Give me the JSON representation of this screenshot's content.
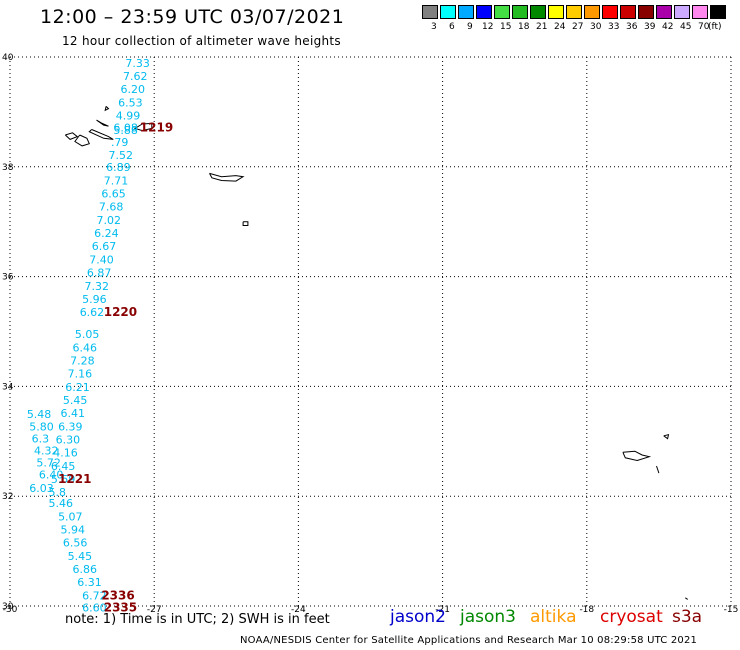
{
  "header": {
    "title": "12:00 – 23:59 UTC 03/07/2021",
    "subtitle": "12 hour collection of altimeter wave heights"
  },
  "legend": {
    "colors": [
      "#808080",
      "#00ffff",
      "#00aaff",
      "#0000ff",
      "#44dd44",
      "#22bb22",
      "#008800",
      "#ffff00",
      "#ffcc00",
      "#ff9900",
      "#ff0000",
      "#cc0000",
      "#880000",
      "#aa00aa",
      "#ccaaff",
      "#ff88ee",
      "#000000"
    ],
    "labels": [
      "3",
      "6",
      "9",
      "12",
      "15",
      "18",
      "21",
      "24",
      "27",
      "30",
      "33",
      "36",
      "39",
      "42",
      "45",
      "70",
      "(ft)"
    ]
  },
  "chart_data": {
    "type": "scatter",
    "xlim": [
      -30,
      -15
    ],
    "ylim": [
      30,
      40
    ],
    "x_ticks": [
      "-30",
      "-27",
      "-24",
      "-21",
      "-18",
      "-15"
    ],
    "y_ticks": [
      "40",
      "38",
      "36",
      "34",
      "32",
      "30"
    ],
    "swh_color": "#00bbee",
    "time_color": "#880000",
    "swh_track_1": [
      {
        "lon": -27.6,
        "lat": 39.82,
        "v": "7.33"
      },
      {
        "lon": -27.65,
        "lat": 39.58,
        "v": "7.62"
      },
      {
        "lon": -27.7,
        "lat": 39.34,
        "v": "6.20"
      },
      {
        "lon": -27.75,
        "lat": 39.1,
        "v": "6.53"
      },
      {
        "lon": -27.8,
        "lat": 38.86,
        "v": "4.99"
      },
      {
        "lon": -27.85,
        "lat": 38.64,
        "v": "6.08"
      },
      {
        "lon": -27.85,
        "lat": 38.6,
        "v": "5.88"
      },
      {
        "lon": -27.9,
        "lat": 38.38,
        "v": ".79"
      },
      {
        "lon": -27.95,
        "lat": 38.14,
        "v": "7.52"
      },
      {
        "lon": -28.0,
        "lat": 37.92,
        "v": "6.89"
      },
      {
        "lon": -28.05,
        "lat": 37.68,
        "v": "7.71"
      },
      {
        "lon": -28.1,
        "lat": 37.44,
        "v": "6.65"
      },
      {
        "lon": -28.15,
        "lat": 37.2,
        "v": "7.68"
      },
      {
        "lon": -28.2,
        "lat": 36.96,
        "v": "7.02"
      },
      {
        "lon": -28.25,
        "lat": 36.72,
        "v": "6.24"
      },
      {
        "lon": -28.3,
        "lat": 36.48,
        "v": "6.67"
      },
      {
        "lon": -28.35,
        "lat": 36.24,
        "v": "7.40"
      },
      {
        "lon": -28.4,
        "lat": 36.0,
        "v": "6.87"
      },
      {
        "lon": -28.45,
        "lat": 35.76,
        "v": "7.32"
      },
      {
        "lon": -28.5,
        "lat": 35.52,
        "v": "5.96"
      },
      {
        "lon": -28.55,
        "lat": 35.28,
        "v": "6.62"
      },
      {
        "lon": -28.65,
        "lat": 34.88,
        "v": "5.05"
      },
      {
        "lon": -28.7,
        "lat": 34.64,
        "v": "6.46"
      },
      {
        "lon": -28.75,
        "lat": 34.4,
        "v": "7.28"
      },
      {
        "lon": -28.8,
        "lat": 34.16,
        "v": "7.16"
      },
      {
        "lon": -28.85,
        "lat": 33.92,
        "v": "6.21"
      },
      {
        "lon": -28.9,
        "lat": 33.68,
        "v": "5.45"
      },
      {
        "lon": -28.95,
        "lat": 33.44,
        "v": "6.41"
      },
      {
        "lon": -29.0,
        "lat": 33.2,
        "v": "6.39"
      },
      {
        "lon": -29.05,
        "lat": 32.96,
        "v": "6.30"
      },
      {
        "lon": -29.1,
        "lat": 32.72,
        "v": "4.16"
      },
      {
        "lon": -29.15,
        "lat": 32.48,
        "v": "6.45"
      },
      {
        "lon": -29.15,
        "lat": 32.24,
        "v": "5.59"
      },
      {
        "lon": -29.2,
        "lat": 32.0,
        "v": "5.8"
      },
      {
        "lon": -29.2,
        "lat": 31.8,
        "v": "5.46"
      }
    ],
    "swh_track_2": [
      {
        "lon": -29.65,
        "lat": 33.42,
        "v": "5.48"
      },
      {
        "lon": -29.6,
        "lat": 33.2,
        "v": "5.80"
      },
      {
        "lon": -29.55,
        "lat": 32.98,
        "v": "6.3"
      },
      {
        "lon": -29.5,
        "lat": 32.76,
        "v": "4.32"
      },
      {
        "lon": -29.45,
        "lat": 32.54,
        "v": "5.72"
      },
      {
        "lon": -29.4,
        "lat": 32.32,
        "v": "6.40"
      },
      {
        "lon": -29.6,
        "lat": 32.08,
        "v": "6.03"
      }
    ],
    "swh_track_3": [
      {
        "lon": -29.0,
        "lat": 31.56,
        "v": "5.07"
      },
      {
        "lon": -28.95,
        "lat": 31.32,
        "v": "5.94"
      },
      {
        "lon": -28.9,
        "lat": 31.08,
        "v": "6.56"
      },
      {
        "lon": -28.8,
        "lat": 30.84,
        "v": "5.45"
      },
      {
        "lon": -28.7,
        "lat": 30.6,
        "v": "6.86"
      },
      {
        "lon": -28.6,
        "lat": 30.36,
        "v": "6.31"
      },
      {
        "lon": -28.5,
        "lat": 30.12,
        "v": "6.72"
      },
      {
        "lon": -28.5,
        "lat": 29.9,
        "v": "6.60"
      }
    ],
    "time_labels": [
      {
        "lon": -27.3,
        "lat": 38.64,
        "v": "1219"
      },
      {
        "lon": -28.05,
        "lat": 35.28,
        "v": "1220"
      },
      {
        "lon": -29.0,
        "lat": 32.24,
        "v": "1221"
      },
      {
        "lon": -28.1,
        "lat": 30.12,
        "v": "2336"
      },
      {
        "lon": -28.05,
        "lat": 29.9,
        "v": "2335"
      }
    ],
    "islands": [
      {
        "name": "flores",
        "points": [
          [
            -28.85,
            38.58
          ],
          [
            -28.7,
            38.62
          ],
          [
            -28.6,
            38.55
          ],
          [
            -28.75,
            38.5
          ],
          [
            -28.85,
            38.58
          ]
        ]
      },
      {
        "name": "faial",
        "points": [
          [
            -28.55,
            38.58
          ],
          [
            -28.4,
            38.52
          ],
          [
            -28.35,
            38.42
          ],
          [
            -28.5,
            38.38
          ],
          [
            -28.65,
            38.46
          ],
          [
            -28.55,
            38.58
          ]
        ]
      },
      {
        "name": "pico",
        "points": [
          [
            -28.3,
            38.68
          ],
          [
            -27.95,
            38.55
          ],
          [
            -27.85,
            38.5
          ],
          [
            -28.05,
            38.52
          ],
          [
            -28.35,
            38.64
          ],
          [
            -28.3,
            38.68
          ]
        ]
      },
      {
        "name": "sao-jorge",
        "points": [
          [
            -28.2,
            38.85
          ],
          [
            -28.05,
            38.76
          ],
          [
            -27.95,
            38.74
          ],
          [
            -28.1,
            38.8
          ],
          [
            -28.2,
            38.85
          ]
        ]
      },
      {
        "name": "terceira",
        "points": [
          [
            -27.25,
            38.78
          ],
          [
            -27.05,
            38.79
          ],
          [
            -27.05,
            38.7
          ],
          [
            -27.25,
            38.66
          ],
          [
            -27.4,
            38.7
          ],
          [
            -27.25,
            38.78
          ]
        ]
      },
      {
        "name": "graciosa",
        "points": [
          [
            -28.0,
            39.1
          ],
          [
            -27.95,
            39.06
          ],
          [
            -28.02,
            39.03
          ],
          [
            -28.0,
            39.1
          ]
        ]
      },
      {
        "name": "sao-miguel",
        "points": [
          [
            -25.85,
            37.88
          ],
          [
            -25.6,
            37.82
          ],
          [
            -25.3,
            37.84
          ],
          [
            -25.15,
            37.82
          ],
          [
            -25.3,
            37.74
          ],
          [
            -25.6,
            37.75
          ],
          [
            -25.8,
            37.8
          ],
          [
            -25.85,
            37.88
          ]
        ]
      },
      {
        "name": "santa-maria",
        "points": [
          [
            -25.15,
            37.0
          ],
          [
            -25.05,
            37.0
          ],
          [
            -25.05,
            36.93
          ],
          [
            -25.15,
            36.93
          ],
          [
            -25.15,
            37.0
          ]
        ]
      },
      {
        "name": "madeira",
        "points": [
          [
            -17.25,
            32.8
          ],
          [
            -17.0,
            32.82
          ],
          [
            -16.85,
            32.75
          ],
          [
            -16.7,
            32.72
          ],
          [
            -16.95,
            32.65
          ],
          [
            -17.2,
            32.7
          ],
          [
            -17.25,
            32.8
          ]
        ]
      },
      {
        "name": "porto-santo",
        "points": [
          [
            -16.4,
            33.1
          ],
          [
            -16.3,
            33.12
          ],
          [
            -16.32,
            33.05
          ],
          [
            -16.4,
            33.1
          ]
        ]
      },
      {
        "name": "desertas",
        "points": [
          [
            -16.55,
            32.55
          ],
          [
            -16.5,
            32.42
          ]
        ]
      },
      {
        "name": "selvagens",
        "points": [
          [
            -15.95,
            30.15
          ],
          [
            -15.9,
            30.12
          ]
        ]
      }
    ]
  },
  "footer": {
    "note": "note: 1) Time is in UTC; 2) SWH is in feet",
    "satellites": [
      {
        "name": "jason2",
        "color": "#0000cc"
      },
      {
        "name": "jason3",
        "color": "#008800"
      },
      {
        "name": "altika",
        "color": "#ff9900"
      },
      {
        "name": "cryosat",
        "color": "#dd0000"
      },
      {
        "name": "s3a",
        "color": "#880000"
      }
    ],
    "credit": "NOAA/NESDIS Center for Satellite Applications and Research    Mar 10 08:29:58 UTC 2021"
  }
}
